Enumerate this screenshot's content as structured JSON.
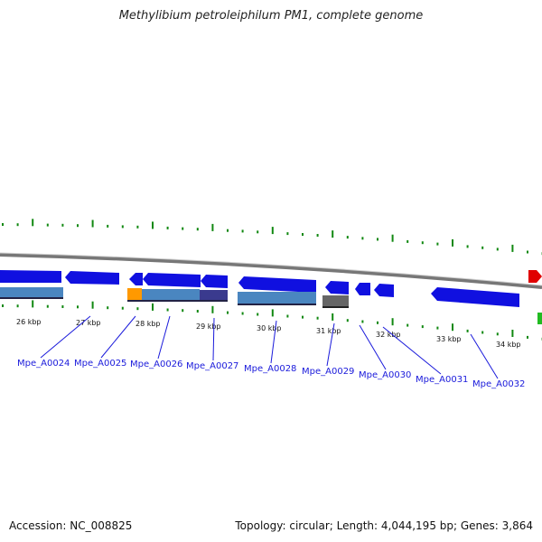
{
  "header": {
    "title": "Methylibium petroleiphilum PM1, complete genome"
  },
  "footer": {
    "accession": "Accession: NC_008825",
    "topology": "Topology: circular; Length: 4,044,195 bp; Genes: 3,864"
  },
  "colors": {
    "gene_forward": "#1010e0",
    "gene_reverse": "#1010e0",
    "rna_blue": "#4a86c0",
    "orange": "#ff9900",
    "purple": "#3a3a8e",
    "gray": "#555555",
    "red": "#e00000",
    "green": "#22bb22",
    "tick": "#118811",
    "backbone": "#777777"
  },
  "ticks": [
    "26 kbp",
    "27 kbp",
    "28 kbp",
    "29 kbp",
    "30 kbp",
    "31 kbp",
    "32 kbp",
    "33 kbp",
    "34 kbp"
  ],
  "genes": [
    "Mpe_A0024",
    "Mpe_A0025",
    "Mpe_A0026",
    "Mpe_A0027",
    "Mpe_A0028",
    "Mpe_A0029",
    "Mpe_A0030",
    "Mpe_A0031",
    "Mpe_A0032"
  ]
}
